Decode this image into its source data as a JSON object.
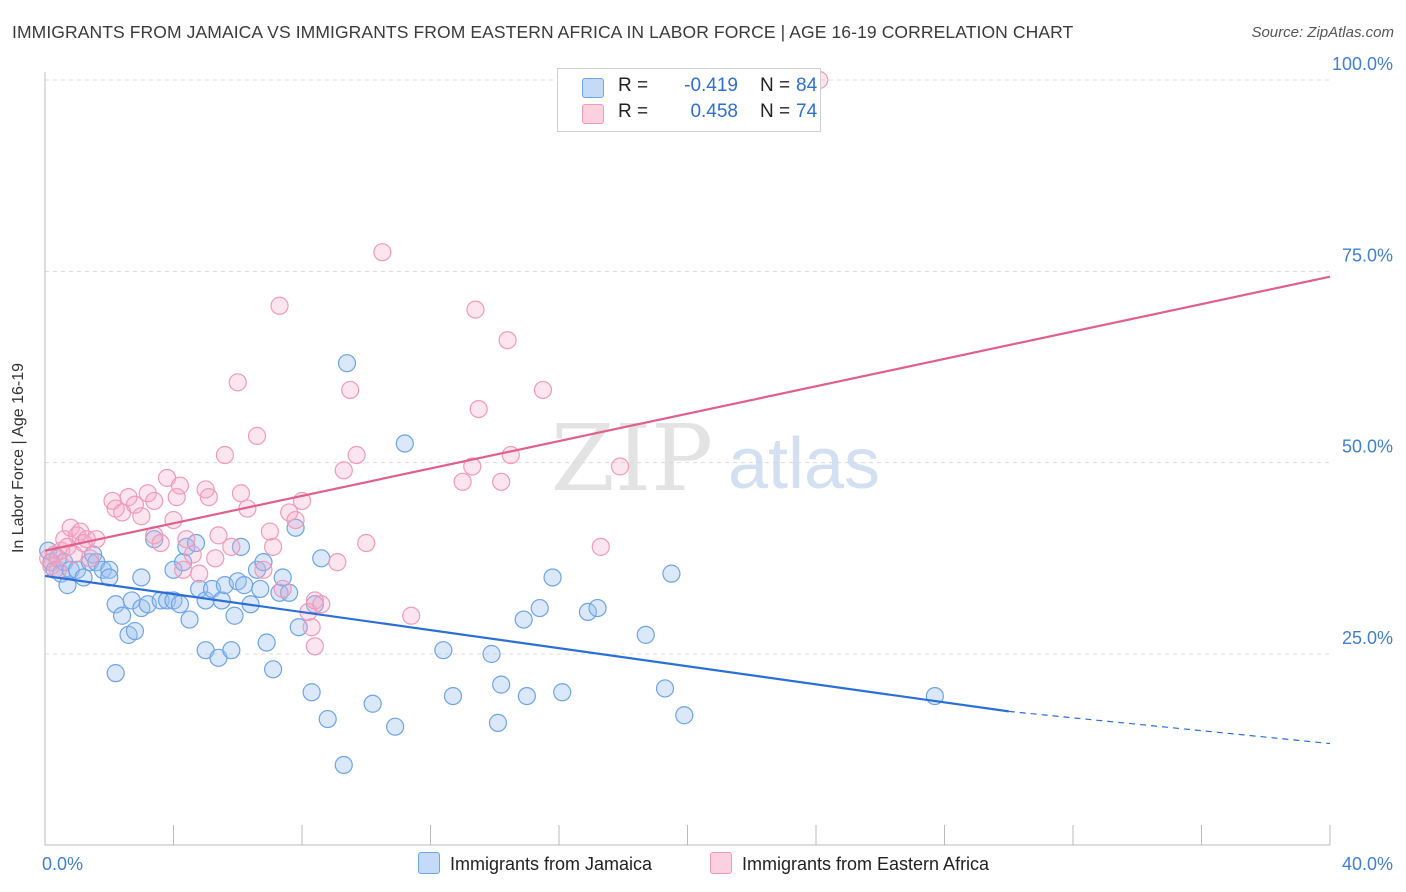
{
  "header": {
    "title": "IMMIGRANTS FROM JAMAICA VS IMMIGRANTS FROM EASTERN AFRICA IN LABOR FORCE | AGE 16-19 CORRELATION CHART",
    "source": "Source: ZipAtlas.com"
  },
  "watermark": {
    "zip": "ZIP",
    "atlas": "atlas"
  },
  "legend": {
    "r_label": "R =",
    "n_label": "N =",
    "series": [
      {
        "r": "-0.419",
        "n": "84"
      },
      {
        "r": "0.458",
        "n": "74"
      }
    ]
  },
  "chart_data": {
    "type": "scatter",
    "title": "IMMIGRANTS FROM JAMAICA VS IMMIGRANTS FROM EASTERN AFRICA IN LABOR FORCE | AGE 16-19 CORRELATION CHART",
    "xlabel": "",
    "ylabel": "In Labor Force | Age 16-19",
    "xlim": [
      0,
      40
    ],
    "ylim": [
      0,
      105
    ],
    "x_tick_labels": [
      "0.0%",
      "40.0%"
    ],
    "y_ticks": [
      25,
      50,
      75,
      100
    ],
    "y_tick_labels": [
      "25.0%",
      "50.0%",
      "75.0%",
      "100.0%"
    ],
    "grid": true,
    "legend_position": "top-center",
    "series": [
      {
        "name": "Immigrants from Jamaica",
        "color": "#6ea4e8",
        "line_color": "#2b6fd6",
        "r": -0.419,
        "n": 84,
        "trend": {
          "x_start": 0,
          "y_start": 35.2,
          "x_solid_end": 30.0,
          "y_solid_end": 17.5,
          "x_end": 40,
          "y_end": 13.3
        },
        "points": [
          [
            0.1,
            38.5
          ],
          [
            0.2,
            37
          ],
          [
            0.3,
            36
          ],
          [
            0.4,
            37.5
          ],
          [
            0.5,
            35.5
          ],
          [
            0.6,
            37
          ],
          [
            0.7,
            34
          ],
          [
            0.8,
            36
          ],
          [
            1.0,
            36
          ],
          [
            1.2,
            35
          ],
          [
            1.4,
            37
          ],
          [
            1.5,
            38
          ],
          [
            1.6,
            37
          ],
          [
            1.8,
            36
          ],
          [
            2.0,
            36
          ],
          [
            2.2,
            22.5
          ],
          [
            2.2,
            31.5
          ],
          [
            2.4,
            30
          ],
          [
            2.6,
            27.5
          ],
          [
            2.7,
            32
          ],
          [
            2.8,
            28
          ],
          [
            3.0,
            35
          ],
          [
            3.0,
            31
          ],
          [
            3.2,
            31.5
          ],
          [
            3.4,
            40
          ],
          [
            3.6,
            32
          ],
          [
            3.8,
            32
          ],
          [
            4.0,
            36
          ],
          [
            4.0,
            32
          ],
          [
            4.2,
            31.5
          ],
          [
            4.3,
            37
          ],
          [
            4.4,
            39
          ],
          [
            4.5,
            29.5
          ],
          [
            4.7,
            39.5
          ],
          [
            4.8,
            33.5
          ],
          [
            5.0,
            32
          ],
          [
            5.0,
            25.5
          ],
          [
            5.2,
            33.5
          ],
          [
            5.4,
            24.5
          ],
          [
            5.5,
            32
          ],
          [
            5.6,
            34
          ],
          [
            5.8,
            25.5
          ],
          [
            5.9,
            30
          ],
          [
            6.0,
            34.5
          ],
          [
            6.1,
            39
          ],
          [
            6.2,
            34
          ],
          [
            6.4,
            31.5
          ],
          [
            6.6,
            36
          ],
          [
            6.7,
            33.5
          ],
          [
            6.8,
            37
          ],
          [
            6.9,
            26.5
          ],
          [
            7.1,
            23
          ],
          [
            7.3,
            33
          ],
          [
            7.4,
            35
          ],
          [
            7.6,
            33
          ],
          [
            7.8,
            41.5
          ],
          [
            7.9,
            28.5
          ],
          [
            8.3,
            20
          ],
          [
            8.4,
            31.5
          ],
          [
            8.6,
            37.5
          ],
          [
            8.8,
            16.5
          ],
          [
            9.3,
            10.5
          ],
          [
            9.4,
            63
          ],
          [
            10.2,
            18.5
          ],
          [
            10.9,
            15.5
          ],
          [
            11.2,
            52.5
          ],
          [
            12.4,
            25.5
          ],
          [
            12.7,
            19.5
          ],
          [
            13.9,
            25
          ],
          [
            14.1,
            16
          ],
          [
            14.2,
            21
          ],
          [
            14.9,
            29.5
          ],
          [
            15.0,
            19.5
          ],
          [
            15.4,
            31
          ],
          [
            15.8,
            35
          ],
          [
            16.1,
            20
          ],
          [
            16.9,
            30.5
          ],
          [
            17.2,
            31
          ],
          [
            18.7,
            27.5
          ],
          [
            19.3,
            20.5
          ],
          [
            19.5,
            35.5
          ],
          [
            19.9,
            17
          ],
          [
            27.7,
            19.5
          ],
          [
            2.0,
            35
          ]
        ]
      },
      {
        "name": "Immigrants from Eastern Africa",
        "color": "#f29ab8",
        "line_color": "#e0608a",
        "r": 0.458,
        "n": 74,
        "trend": {
          "x_start": 0,
          "y_start": 38.5,
          "x_end": 40,
          "y_end": 74.3
        },
        "points": [
          [
            0.1,
            37.5
          ],
          [
            0.2,
            36.5
          ],
          [
            0.3,
            38
          ],
          [
            0.4,
            36
          ],
          [
            0.5,
            38.5
          ],
          [
            0.6,
            40
          ],
          [
            0.7,
            39
          ],
          [
            0.8,
            41.5
          ],
          [
            0.9,
            38
          ],
          [
            1.0,
            40.5
          ],
          [
            1.1,
            41
          ],
          [
            1.2,
            39.5
          ],
          [
            1.3,
            40
          ],
          [
            1.4,
            37.5
          ],
          [
            1.6,
            40
          ],
          [
            2.1,
            45
          ],
          [
            2.2,
            44
          ],
          [
            2.4,
            43.5
          ],
          [
            2.6,
            45.5
          ],
          [
            2.8,
            44.5
          ],
          [
            3.0,
            43
          ],
          [
            3.2,
            46
          ],
          [
            3.4,
            45
          ],
          [
            3.4,
            40.5
          ],
          [
            3.6,
            39.5
          ],
          [
            3.8,
            48
          ],
          [
            4.0,
            42.5
          ],
          [
            4.1,
            45.5
          ],
          [
            4.2,
            47
          ],
          [
            4.3,
            36
          ],
          [
            4.4,
            40
          ],
          [
            4.6,
            38
          ],
          [
            4.8,
            35.5
          ],
          [
            5.0,
            46.5
          ],
          [
            5.1,
            45.5
          ],
          [
            5.3,
            37.5
          ],
          [
            5.4,
            40.5
          ],
          [
            5.6,
            51
          ],
          [
            5.8,
            39
          ],
          [
            6.0,
            60.5
          ],
          [
            6.1,
            46
          ],
          [
            6.3,
            44
          ],
          [
            6.6,
            53.5
          ],
          [
            6.8,
            36
          ],
          [
            7.0,
            41
          ],
          [
            7.1,
            39
          ],
          [
            7.3,
            70.5
          ],
          [
            7.4,
            33.5
          ],
          [
            7.6,
            43.5
          ],
          [
            7.8,
            42.5
          ],
          [
            8.0,
            45
          ],
          [
            8.2,
            30.5
          ],
          [
            8.3,
            28.5
          ],
          [
            8.4,
            32
          ],
          [
            8.4,
            26
          ],
          [
            8.6,
            31.5
          ],
          [
            9.1,
            37
          ],
          [
            9.3,
            49
          ],
          [
            9.5,
            59.5
          ],
          [
            9.7,
            51
          ],
          [
            10.0,
            39.5
          ],
          [
            10.5,
            77.5
          ],
          [
            11.4,
            30
          ],
          [
            13.0,
            47.5
          ],
          [
            13.3,
            49.5
          ],
          [
            13.4,
            70
          ],
          [
            13.5,
            57
          ],
          [
            14.2,
            47.5
          ],
          [
            14.4,
            66
          ],
          [
            14.5,
            51
          ],
          [
            15.5,
            59.5
          ],
          [
            17.3,
            39
          ],
          [
            17.9,
            49.5
          ],
          [
            24.1,
            100
          ]
        ]
      }
    ]
  }
}
